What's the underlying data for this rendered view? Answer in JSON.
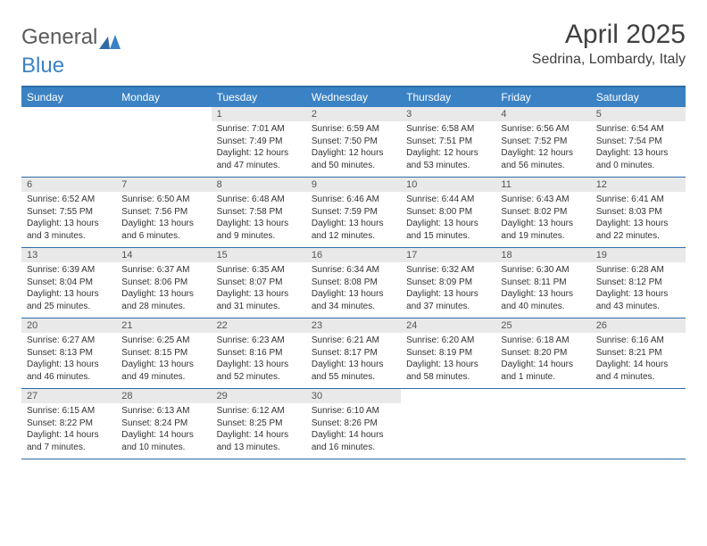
{
  "logo": {
    "part1": "General",
    "part2": "Blue"
  },
  "title": "April 2025",
  "location": "Sedrina, Lombardy, Italy",
  "colors": {
    "header_bg": "#3b82c4",
    "header_border": "#2e6ca8",
    "daynum_bg": "#e9e9e9",
    "text": "#333333",
    "title_text": "#404040",
    "logo_gray": "#5a5a5a"
  },
  "fonts": {
    "title_size": 30,
    "location_size": 16,
    "dow_size": 12,
    "daynum_size": 11,
    "body_size": 10
  },
  "dow": [
    "Sunday",
    "Monday",
    "Tuesday",
    "Wednesday",
    "Thursday",
    "Friday",
    "Saturday"
  ],
  "weeks": [
    [
      null,
      null,
      {
        "d": "1",
        "sr": "Sunrise: 7:01 AM",
        "ss": "Sunset: 7:49 PM",
        "dl": "Daylight: 12 hours and 47 minutes."
      },
      {
        "d": "2",
        "sr": "Sunrise: 6:59 AM",
        "ss": "Sunset: 7:50 PM",
        "dl": "Daylight: 12 hours and 50 minutes."
      },
      {
        "d": "3",
        "sr": "Sunrise: 6:58 AM",
        "ss": "Sunset: 7:51 PM",
        "dl": "Daylight: 12 hours and 53 minutes."
      },
      {
        "d": "4",
        "sr": "Sunrise: 6:56 AM",
        "ss": "Sunset: 7:52 PM",
        "dl": "Daylight: 12 hours and 56 minutes."
      },
      {
        "d": "5",
        "sr": "Sunrise: 6:54 AM",
        "ss": "Sunset: 7:54 PM",
        "dl": "Daylight: 13 hours and 0 minutes."
      }
    ],
    [
      {
        "d": "6",
        "sr": "Sunrise: 6:52 AM",
        "ss": "Sunset: 7:55 PM",
        "dl": "Daylight: 13 hours and 3 minutes."
      },
      {
        "d": "7",
        "sr": "Sunrise: 6:50 AM",
        "ss": "Sunset: 7:56 PM",
        "dl": "Daylight: 13 hours and 6 minutes."
      },
      {
        "d": "8",
        "sr": "Sunrise: 6:48 AM",
        "ss": "Sunset: 7:58 PM",
        "dl": "Daylight: 13 hours and 9 minutes."
      },
      {
        "d": "9",
        "sr": "Sunrise: 6:46 AM",
        "ss": "Sunset: 7:59 PM",
        "dl": "Daylight: 13 hours and 12 minutes."
      },
      {
        "d": "10",
        "sr": "Sunrise: 6:44 AM",
        "ss": "Sunset: 8:00 PM",
        "dl": "Daylight: 13 hours and 15 minutes."
      },
      {
        "d": "11",
        "sr": "Sunrise: 6:43 AM",
        "ss": "Sunset: 8:02 PM",
        "dl": "Daylight: 13 hours and 19 minutes."
      },
      {
        "d": "12",
        "sr": "Sunrise: 6:41 AM",
        "ss": "Sunset: 8:03 PM",
        "dl": "Daylight: 13 hours and 22 minutes."
      }
    ],
    [
      {
        "d": "13",
        "sr": "Sunrise: 6:39 AM",
        "ss": "Sunset: 8:04 PM",
        "dl": "Daylight: 13 hours and 25 minutes."
      },
      {
        "d": "14",
        "sr": "Sunrise: 6:37 AM",
        "ss": "Sunset: 8:06 PM",
        "dl": "Daylight: 13 hours and 28 minutes."
      },
      {
        "d": "15",
        "sr": "Sunrise: 6:35 AM",
        "ss": "Sunset: 8:07 PM",
        "dl": "Daylight: 13 hours and 31 minutes."
      },
      {
        "d": "16",
        "sr": "Sunrise: 6:34 AM",
        "ss": "Sunset: 8:08 PM",
        "dl": "Daylight: 13 hours and 34 minutes."
      },
      {
        "d": "17",
        "sr": "Sunrise: 6:32 AM",
        "ss": "Sunset: 8:09 PM",
        "dl": "Daylight: 13 hours and 37 minutes."
      },
      {
        "d": "18",
        "sr": "Sunrise: 6:30 AM",
        "ss": "Sunset: 8:11 PM",
        "dl": "Daylight: 13 hours and 40 minutes."
      },
      {
        "d": "19",
        "sr": "Sunrise: 6:28 AM",
        "ss": "Sunset: 8:12 PM",
        "dl": "Daylight: 13 hours and 43 minutes."
      }
    ],
    [
      {
        "d": "20",
        "sr": "Sunrise: 6:27 AM",
        "ss": "Sunset: 8:13 PM",
        "dl": "Daylight: 13 hours and 46 minutes."
      },
      {
        "d": "21",
        "sr": "Sunrise: 6:25 AM",
        "ss": "Sunset: 8:15 PM",
        "dl": "Daylight: 13 hours and 49 minutes."
      },
      {
        "d": "22",
        "sr": "Sunrise: 6:23 AM",
        "ss": "Sunset: 8:16 PM",
        "dl": "Daylight: 13 hours and 52 minutes."
      },
      {
        "d": "23",
        "sr": "Sunrise: 6:21 AM",
        "ss": "Sunset: 8:17 PM",
        "dl": "Daylight: 13 hours and 55 minutes."
      },
      {
        "d": "24",
        "sr": "Sunrise: 6:20 AM",
        "ss": "Sunset: 8:19 PM",
        "dl": "Daylight: 13 hours and 58 minutes."
      },
      {
        "d": "25",
        "sr": "Sunrise: 6:18 AM",
        "ss": "Sunset: 8:20 PM",
        "dl": "Daylight: 14 hours and 1 minute."
      },
      {
        "d": "26",
        "sr": "Sunrise: 6:16 AM",
        "ss": "Sunset: 8:21 PM",
        "dl": "Daylight: 14 hours and 4 minutes."
      }
    ],
    [
      {
        "d": "27",
        "sr": "Sunrise: 6:15 AM",
        "ss": "Sunset: 8:22 PM",
        "dl": "Daylight: 14 hours and 7 minutes."
      },
      {
        "d": "28",
        "sr": "Sunrise: 6:13 AM",
        "ss": "Sunset: 8:24 PM",
        "dl": "Daylight: 14 hours and 10 minutes."
      },
      {
        "d": "29",
        "sr": "Sunrise: 6:12 AM",
        "ss": "Sunset: 8:25 PM",
        "dl": "Daylight: 14 hours and 13 minutes."
      },
      {
        "d": "30",
        "sr": "Sunrise: 6:10 AM",
        "ss": "Sunset: 8:26 PM",
        "dl": "Daylight: 14 hours and 16 minutes."
      },
      null,
      null,
      null
    ]
  ]
}
